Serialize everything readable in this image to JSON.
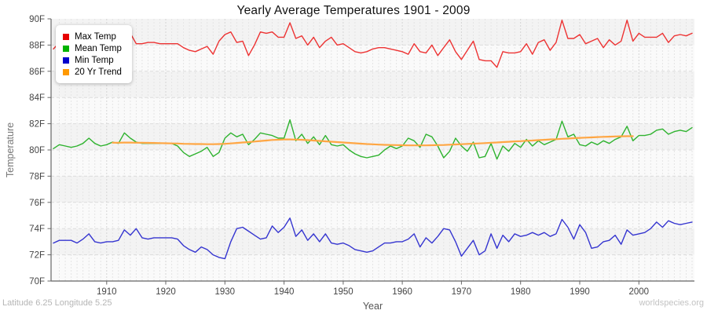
{
  "title": "Yearly Average Temperatures 1901 - 2009",
  "axes": {
    "x_label": "Year",
    "y_label": "Temperature"
  },
  "footer": {
    "left": "Latitude 6.25 Longitude 5.25",
    "right": "worldspecies.org"
  },
  "legend": {
    "position": "top-left",
    "items": [
      "Max Temp",
      "Mean Temp",
      "Min Temp",
      "20 Yr Trend"
    ]
  },
  "chart_data": {
    "type": "line",
    "title": "Yearly Average Temperatures 1901 - 2009",
    "xlabel": "Year",
    "ylabel": "Temperature",
    "xlim": [
      1901,
      2009
    ],
    "ylim": [
      70,
      90
    ],
    "grid": "dashed, alternating horizontal bands, vertical line per year",
    "legend_position": "top-left",
    "x_ticks": [
      {
        "value": 1910,
        "label": "1910"
      },
      {
        "value": 1920,
        "label": "1920"
      },
      {
        "value": 1930,
        "label": "1930"
      },
      {
        "value": 1940,
        "label": "1940"
      },
      {
        "value": 1950,
        "label": "1950"
      },
      {
        "value": 1960,
        "label": "1960"
      },
      {
        "value": 1970,
        "label": "1970"
      },
      {
        "value": 1980,
        "label": "1980"
      },
      {
        "value": 1990,
        "label": "1990"
      },
      {
        "value": 2000,
        "label": "2000"
      }
    ],
    "y_ticks": [
      {
        "value": 70,
        "label": "70F"
      },
      {
        "value": 72,
        "label": "72F"
      },
      {
        "value": 74,
        "label": "74F"
      },
      {
        "value": 76,
        "label": "76F"
      },
      {
        "value": 78,
        "label": "78F"
      },
      {
        "value": 80,
        "label": "80F"
      },
      {
        "value": 82,
        "label": "82F"
      },
      {
        "value": 84,
        "label": "84F"
      },
      {
        "value": 86,
        "label": "86F"
      },
      {
        "value": 88,
        "label": "88F"
      },
      {
        "value": 90,
        "label": "90F"
      }
    ],
    "series": [
      {
        "name": "Max Temp",
        "color": "#ed3333",
        "swatch": "#e60000",
        "x_start": 1901,
        "values": [
          87.7,
          88.2,
          88.6,
          88.9,
          88.8,
          88.6,
          88.9,
          88.6,
          88.4,
          88.3,
          88.5,
          88.4,
          89.1,
          88.9,
          88.1,
          88.1,
          88.2,
          88.2,
          88.1,
          88.1,
          88.1,
          88.1,
          87.8,
          87.6,
          87.5,
          87.7,
          87.9,
          87.3,
          88.3,
          88.8,
          89.0,
          88.2,
          88.3,
          87.2,
          88.0,
          89.0,
          88.9,
          89.0,
          88.6,
          88.6,
          89.7,
          88.5,
          88.7,
          88.0,
          88.6,
          87.8,
          88.3,
          88.6,
          88.0,
          88.1,
          87.8,
          87.5,
          87.4,
          87.5,
          87.7,
          87.8,
          87.8,
          87.7,
          87.6,
          87.5,
          87.3,
          88.1,
          87.5,
          87.4,
          88.0,
          87.2,
          87.8,
          88.4,
          87.5,
          86.9,
          87.6,
          88.3,
          86.9,
          86.8,
          86.8,
          86.3,
          87.5,
          87.4,
          87.4,
          87.5,
          88.1,
          87.3,
          88.2,
          88.4,
          87.6,
          88.2,
          89.9,
          88.5,
          88.5,
          88.8,
          88.1,
          88.3,
          88.5,
          87.8,
          88.4,
          88.0,
          88.3,
          89.9,
          88.3,
          88.9,
          88.6,
          88.6,
          88.6,
          88.9,
          88.2,
          88.7,
          88.8,
          88.7,
          88.9
        ]
      },
      {
        "name": "Mean Temp",
        "color": "#2fb32f",
        "swatch": "#00b300",
        "x_start": 1901,
        "values": [
          80.1,
          80.4,
          80.3,
          80.2,
          80.3,
          80.5,
          80.9,
          80.5,
          80.3,
          80.4,
          80.6,
          80.5,
          81.3,
          80.9,
          80.6,
          80.5,
          80.5,
          80.5,
          80.5,
          80.5,
          80.5,
          80.3,
          79.8,
          79.5,
          79.7,
          79.9,
          80.2,
          79.5,
          79.8,
          80.9,
          81.3,
          81.0,
          81.2,
          80.4,
          80.8,
          81.3,
          81.2,
          81.1,
          80.9,
          80.9,
          82.3,
          80.7,
          81.2,
          80.5,
          81.0,
          80.4,
          81.1,
          80.4,
          80.3,
          80.4,
          80.0,
          79.7,
          79.5,
          79.4,
          79.5,
          79.6,
          80.0,
          80.3,
          80.1,
          80.3,
          80.9,
          80.7,
          80.2,
          81.2,
          81.0,
          80.3,
          79.4,
          79.9,
          80.9,
          80.3,
          79.9,
          80.6,
          79.4,
          79.5,
          80.5,
          79.3,
          80.3,
          79.9,
          80.5,
          80.2,
          80.8,
          80.3,
          80.7,
          80.4,
          80.6,
          80.8,
          82.2,
          81.0,
          81.2,
          80.4,
          80.3,
          80.6,
          80.4,
          80.7,
          80.5,
          80.8,
          81.0,
          81.8,
          80.7,
          81.1,
          81.1,
          81.2,
          81.5,
          81.6,
          81.2,
          81.4,
          81.5,
          81.4,
          81.7
        ]
      },
      {
        "name": "Min Temp",
        "color": "#3535d0",
        "swatch": "#0000cc",
        "x_start": 1901,
        "values": [
          72.9,
          73.1,
          73.1,
          73.1,
          72.9,
          73.2,
          73.6,
          73.0,
          72.9,
          73.0,
          73.0,
          73.1,
          73.9,
          73.5,
          74.0,
          73.3,
          73.2,
          73.3,
          73.3,
          73.3,
          73.3,
          73.2,
          72.7,
          72.4,
          72.2,
          72.6,
          72.4,
          72.0,
          71.8,
          71.7,
          73.0,
          74.0,
          74.1,
          73.8,
          73.5,
          73.2,
          73.3,
          74.2,
          73.7,
          74.1,
          74.8,
          73.4,
          73.9,
          73.1,
          73.6,
          73.0,
          73.6,
          72.9,
          72.8,
          72.9,
          72.7,
          72.4,
          72.3,
          72.2,
          72.3,
          72.6,
          72.9,
          72.9,
          73.0,
          73.0,
          73.2,
          73.6,
          72.6,
          73.3,
          72.9,
          73.4,
          74.0,
          73.9,
          73.0,
          71.9,
          72.5,
          73.1,
          72.0,
          72.3,
          73.6,
          72.5,
          73.5,
          73.0,
          73.6,
          73.4,
          73.5,
          73.7,
          73.5,
          73.7,
          73.4,
          73.6,
          74.7,
          74.1,
          73.2,
          74.3,
          73.7,
          72.5,
          72.6,
          73.0,
          73.1,
          73.5,
          72.8,
          73.9,
          73.5,
          73.6,
          73.7,
          74.0,
          74.5,
          74.1,
          74.6,
          74.4,
          74.3,
          74.4,
          74.5
        ]
      },
      {
        "name": "20 Yr Trend",
        "color": "#ffa643",
        "swatch": "#ff9900",
        "x_start": 1911,
        "values": [
          80.55,
          80.55,
          80.56,
          80.56,
          80.55,
          80.55,
          80.54,
          80.53,
          80.52,
          80.51,
          80.5,
          80.49,
          80.47,
          80.46,
          80.45,
          80.45,
          80.44,
          80.44,
          80.45,
          80.47,
          80.5,
          80.53,
          80.57,
          80.6,
          80.64,
          80.68,
          80.72,
          80.76,
          80.78,
          80.8,
          80.8,
          80.79,
          80.77,
          80.75,
          80.72,
          80.69,
          80.66,
          80.63,
          80.6,
          80.57,
          80.54,
          80.51,
          80.48,
          80.45,
          80.43,
          80.41,
          80.39,
          80.38,
          80.37,
          80.36,
          80.35,
          80.35,
          80.35,
          80.35,
          80.36,
          80.37,
          80.38,
          80.4,
          80.42,
          80.44,
          80.46,
          80.48,
          80.5,
          80.52,
          80.55,
          80.57,
          80.6,
          80.62,
          80.65,
          80.67,
          80.7,
          80.72,
          80.75,
          80.77,
          80.8,
          80.82,
          80.85,
          80.87,
          80.9,
          80.92,
          80.94,
          80.96,
          80.98,
          81.0,
          81.01,
          81.03,
          81.04,
          81.05,
          81.05
        ]
      }
    ]
  }
}
